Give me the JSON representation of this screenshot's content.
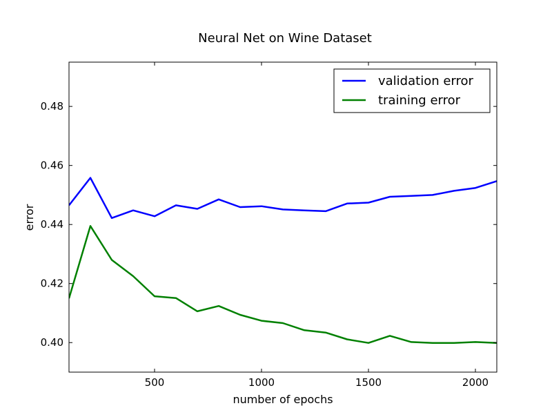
{
  "chart_data": {
    "type": "line",
    "title": "Neural Net on Wine Dataset",
    "xlabel": "number of epochs",
    "ylabel": "error",
    "xlim": [
      100,
      2100
    ],
    "ylim": [
      0.39,
      0.495
    ],
    "xticks": [
      500,
      1000,
      1500,
      2000
    ],
    "yticks": [
      0.4,
      0.42,
      0.44,
      0.46,
      0.48
    ],
    "ytick_labels": [
      "0.40",
      "0.42",
      "0.44",
      "0.46",
      "0.48"
    ],
    "grid": false,
    "legend_position": "top-right",
    "x": [
      100,
      200,
      300,
      400,
      500,
      600,
      700,
      800,
      900,
      1000,
      1100,
      1200,
      1300,
      1400,
      1500,
      1600,
      1700,
      1800,
      1900,
      2000,
      2100
    ],
    "series": [
      {
        "name": "validation error",
        "color": "#0000ff",
        "values": [
          0.4465,
          0.4558,
          0.4422,
          0.4448,
          0.4428,
          0.4465,
          0.4453,
          0.4485,
          0.4459,
          0.4462,
          0.4451,
          0.4448,
          0.4445,
          0.4471,
          0.4474,
          0.4494,
          0.4497,
          0.45,
          0.4514,
          0.4524,
          0.4547
        ]
      },
      {
        "name": "training error",
        "color": "#008000",
        "values": [
          0.415,
          0.4395,
          0.428,
          0.4225,
          0.4157,
          0.4151,
          0.4106,
          0.4124,
          0.4094,
          0.4074,
          0.4066,
          0.4042,
          0.4034,
          0.4011,
          0.3999,
          0.4023,
          0.4002,
          0.3999,
          0.3999,
          0.4002,
          0.3999
        ]
      }
    ]
  }
}
